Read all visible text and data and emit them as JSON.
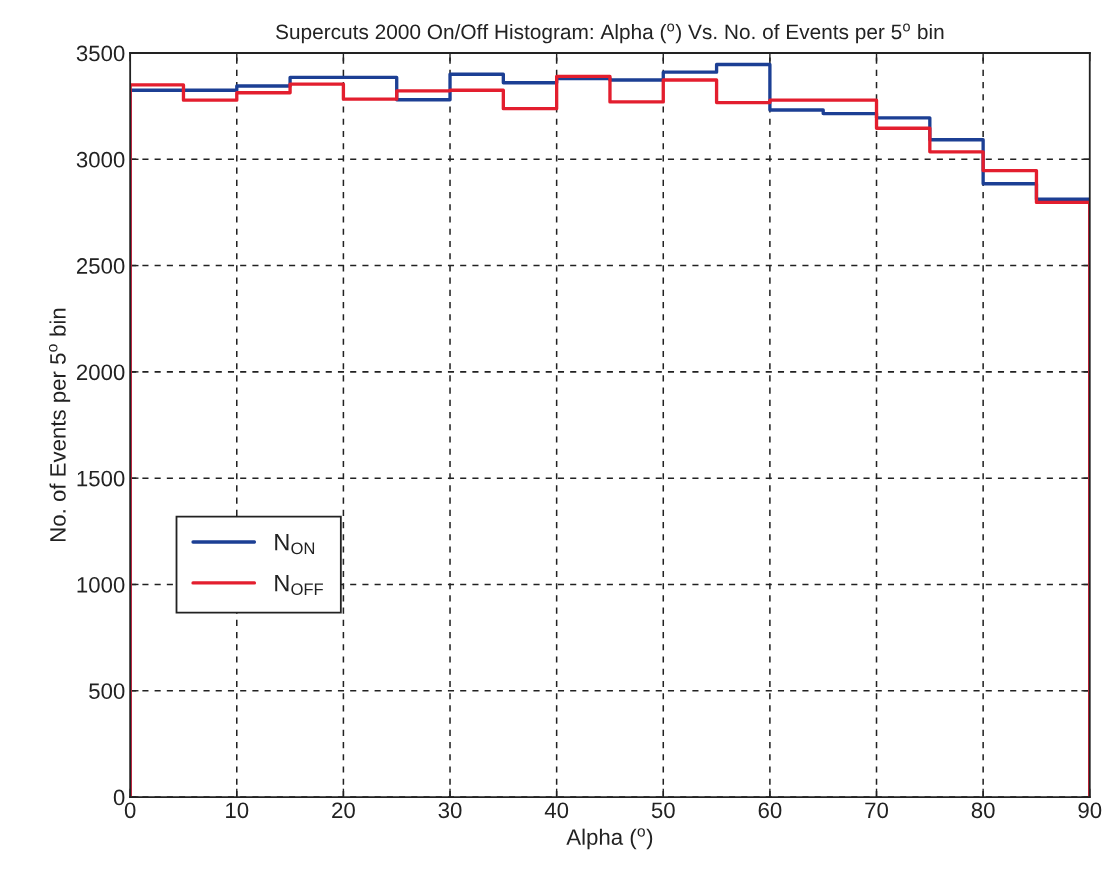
{
  "chart_data": {
    "type": "histogram",
    "title": "Supercuts 2000 On/Off Histogram: Alpha ($^{o}$) Vs. No. of Events per 5$^{o}$ bin",
    "xlabel": "Alpha ($^{o}$)",
    "ylabel": "No. of Events per 5$^{o}$ bin",
    "bins": [
      0,
      5,
      10,
      15,
      20,
      25,
      30,
      35,
      40,
      45,
      50,
      55,
      60,
      65,
      70,
      75,
      80,
      85,
      90
    ],
    "series": [
      {
        "name": "N$_{ON}$",
        "color": "#1c3f94",
        "values": [
          3325,
          3325,
          3345,
          3385,
          3385,
          3280,
          3400,
          3360,
          3380,
          3373,
          3410,
          3446,
          3232,
          3215,
          3195,
          3092,
          2885,
          2812
        ]
      },
      {
        "name": "N$_{OFF}$",
        "color": "#e31e2e",
        "values": [
          3350,
          3278,
          3313,
          3354,
          3283,
          3322,
          3325,
          3238,
          3390,
          3270,
          3373,
          3267,
          3278,
          3278,
          3146,
          3035,
          2947,
          2797
        ]
      }
    ],
    "xlim": [
      0,
      90
    ],
    "ylim": [
      0,
      3500
    ],
    "xticks": [
      0,
      10,
      20,
      30,
      40,
      50,
      60,
      70,
      80,
      90
    ],
    "yticks": [
      0,
      500,
      1000,
      1500,
      2000,
      2500,
      3000,
      3500
    ],
    "grid": true,
    "legend": "lower left"
  }
}
